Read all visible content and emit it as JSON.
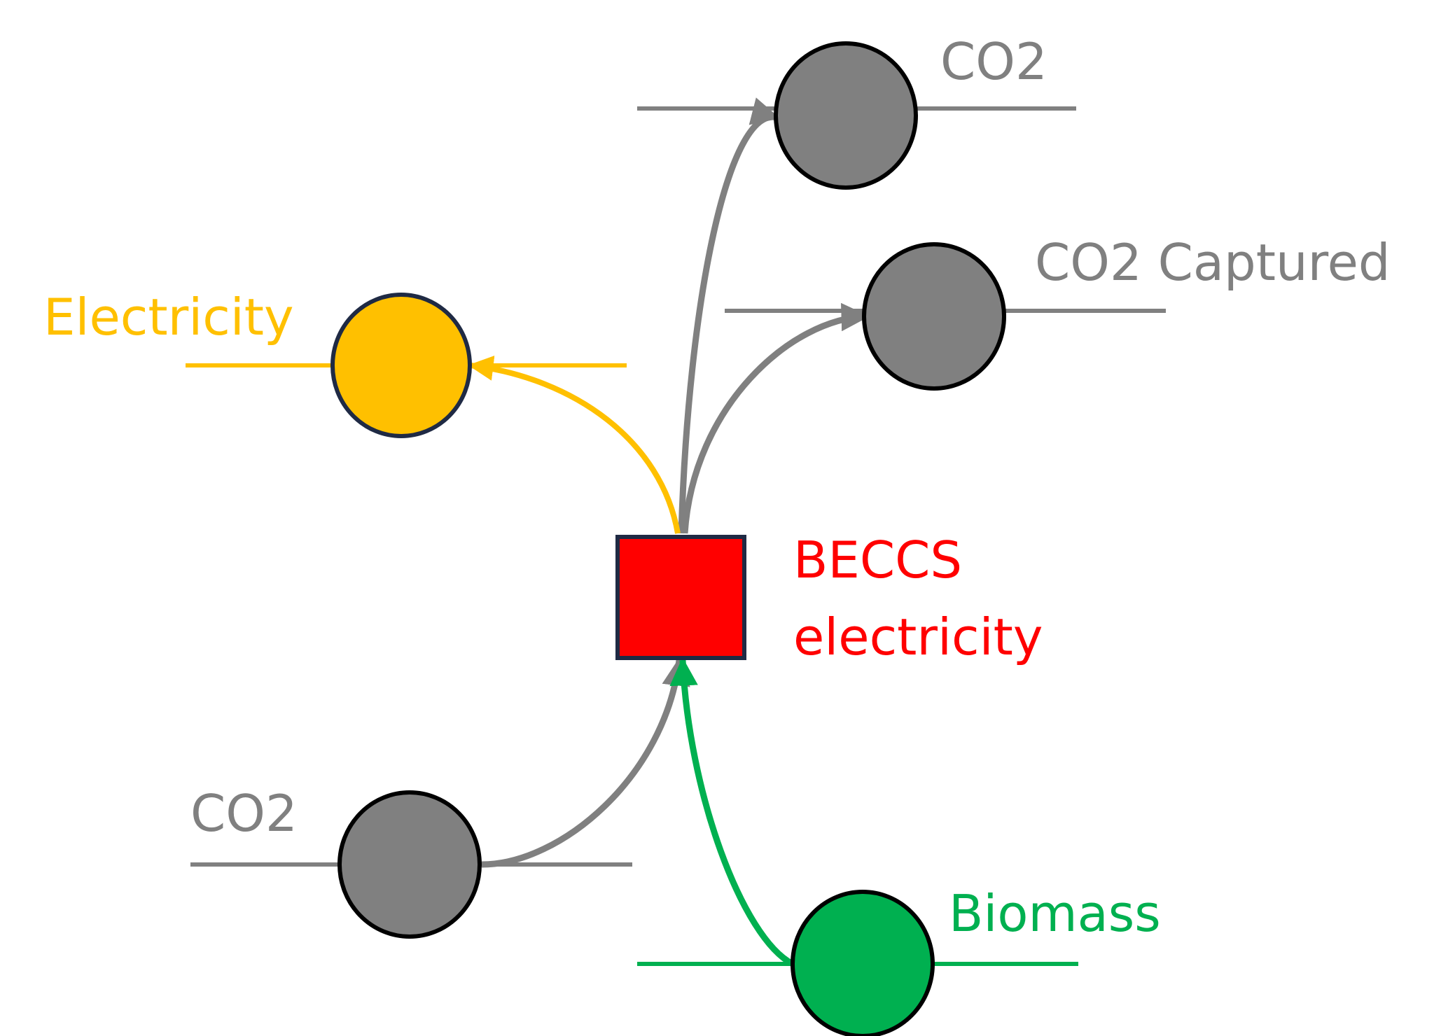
{
  "colors": {
    "electricity": "#FFC000",
    "co2": "#808080",
    "biomass": "#00B050",
    "process": "#FF0000",
    "node_outline": "#000000",
    "process_outline": "#1F2A44"
  },
  "nodes": {
    "co2_top": {
      "label": "CO2",
      "icon": "circle"
    },
    "co2_captured": {
      "label": "CO2 Captured",
      "icon": "circle"
    },
    "electricity": {
      "label": "Electricity",
      "icon": "circle"
    },
    "co2_bottom": {
      "label": "CO2",
      "icon": "circle"
    },
    "biomass": {
      "label": "Biomass",
      "icon": "circle"
    }
  },
  "process": {
    "label_line1": "BECCS",
    "label_line2": "electricity",
    "icon": "square"
  }
}
